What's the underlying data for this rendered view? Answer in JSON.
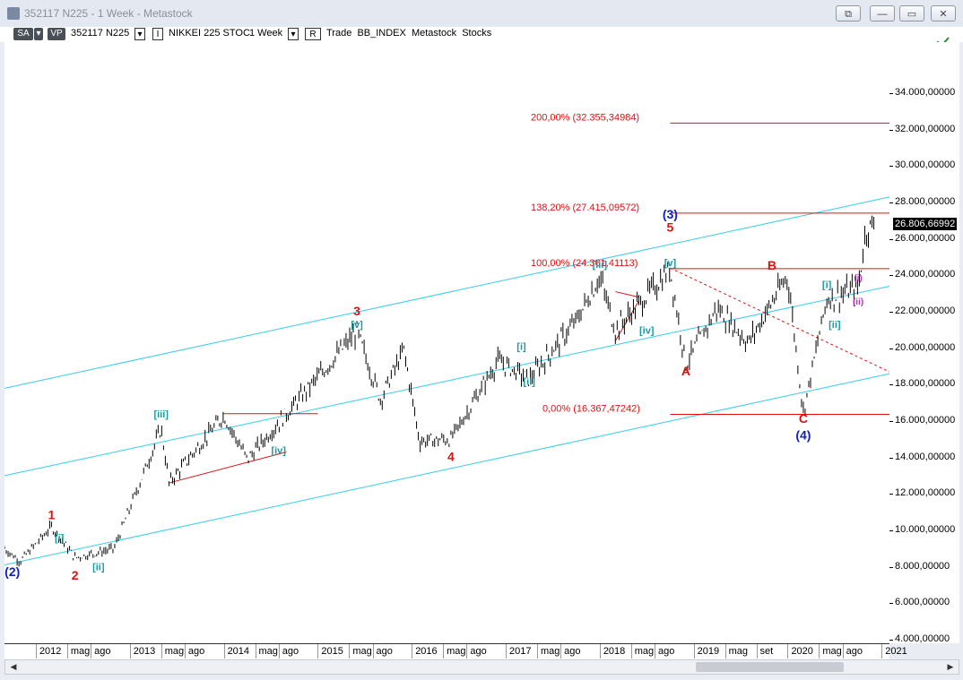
{
  "window": {
    "title": "352117 N225 - 1 Week - Metastock",
    "btn_restore": "⧉",
    "btn_min": "—",
    "btn_max": "▭",
    "btn_close": "✕"
  },
  "toolbar": {
    "sa": "SA",
    "vp": "VP",
    "security": "352117 N225",
    "i_label": "I",
    "name": "NIKKEI 225 STOC",
    "period": "1 Week",
    "r_label": "R",
    "tail": "Trade  BB_INDEX  Metastock  Stocks",
    "dropdown_glyph": "▾"
  },
  "icons": {
    "app": "metastock-app-icon",
    "tool": "drawing-tool-icon",
    "scroll_left": "◀",
    "scroll_right": "▶"
  },
  "colors": {
    "candles": "#000000",
    "channel": "#33ccee",
    "fib": "#e01010",
    "wave_red": "#e01010",
    "wave_blue": "#1020c0",
    "wave_teal": "#1a9aa0",
    "wave_magenta": "#c030c0"
  },
  "chart_data": {
    "type": "candlestick",
    "symbol": "N225",
    "period": "1 Week",
    "y_range": [
      3800,
      36800
    ],
    "y_ticks": [
      "34.000,00000",
      "32.000,00000",
      "30.000,00000",
      "28.000,00000",
      "26.000,00000",
      "24.000,00000",
      "22.000,00000",
      "20.000,00000",
      "18.000,00000",
      "16.000,00000",
      "14.000,00000",
      "12.000,00000",
      "10.000,00000",
      "8.000,00000",
      "6.000,00000",
      "4.000,00000"
    ],
    "y_tick_values": [
      34000,
      32000,
      30000,
      28000,
      26000,
      24000,
      22000,
      20000,
      18000,
      16000,
      14000,
      12000,
      10000,
      8000,
      6000,
      4000
    ],
    "last_price": "26.806,66992",
    "last_value": 26806.67,
    "x_range": [
      "2011-09",
      "2021-02"
    ],
    "x_ticks": [
      {
        "label": "2012",
        "date": "2012-01"
      },
      {
        "label": "mag",
        "date": "2012-05"
      },
      {
        "label": "ago",
        "date": "2012-08"
      },
      {
        "label": "2013",
        "date": "2013-01"
      },
      {
        "label": "mag",
        "date": "2013-05"
      },
      {
        "label": "ago",
        "date": "2013-08"
      },
      {
        "label": "2014",
        "date": "2014-01"
      },
      {
        "label": "mag",
        "date": "2014-05"
      },
      {
        "label": "ago",
        "date": "2014-08"
      },
      {
        "label": "2015",
        "date": "2015-01"
      },
      {
        "label": "mag",
        "date": "2015-05"
      },
      {
        "label": "ago",
        "date": "2015-08"
      },
      {
        "label": "2016",
        "date": "2016-01"
      },
      {
        "label": "mag",
        "date": "2016-05"
      },
      {
        "label": "ago",
        "date": "2016-08"
      },
      {
        "label": "2017",
        "date": "2017-01"
      },
      {
        "label": "mag",
        "date": "2017-05"
      },
      {
        "label": "ago",
        "date": "2017-08"
      },
      {
        "label": "2018",
        "date": "2018-01"
      },
      {
        "label": "mag",
        "date": "2018-05"
      },
      {
        "label": "ago",
        "date": "2018-08"
      },
      {
        "label": "2019",
        "date": "2019-01"
      },
      {
        "label": "mag",
        "date": "2019-05"
      },
      {
        "label": "set",
        "date": "2019-09"
      },
      {
        "label": "2020",
        "date": "2020-01"
      },
      {
        "label": "mag",
        "date": "2020-05"
      },
      {
        "label": "ago",
        "date": "2020-08"
      },
      {
        "label": "2021",
        "date": "2021-01"
      }
    ],
    "price_path": [
      [
        "2011-09",
        9000
      ],
      [
        "2011-11",
        8300
      ],
      [
        "2012-03",
        10200
      ],
      [
        "2012-06",
        8500
      ],
      [
        "2012-11",
        9000
      ],
      [
        "2013-05",
        15600
      ],
      [
        "2013-06",
        12600
      ],
      [
        "2014-01",
        16300
      ],
      [
        "2014-04",
        13900
      ],
      [
        "2014-12",
        17900
      ],
      [
        "2015-06",
        20900
      ],
      [
        "2015-09",
        17200
      ],
      [
        "2015-12",
        19900
      ],
      [
        "2016-02",
        14900
      ],
      [
        "2016-06",
        15000
      ],
      [
        "2016-12",
        19300
      ],
      [
        "2017-04",
        18300
      ],
      [
        "2017-10",
        21500
      ],
      [
        "2018-01",
        23900
      ],
      [
        "2018-03",
        21000
      ],
      [
        "2018-10",
        24300
      ],
      [
        "2018-12",
        19100
      ],
      [
        "2019-04",
        22200
      ],
      [
        "2019-08",
        20300
      ],
      [
        "2020-01",
        24000
      ],
      [
        "2020-03",
        16500
      ],
      [
        "2020-06",
        22700
      ],
      [
        "2020-10",
        23300
      ],
      [
        "2020-11",
        26500
      ],
      [
        "2020-12",
        26806.67
      ]
    ],
    "fib_levels": [
      {
        "label": "200,00% (32.355,34984)",
        "value": 32355.35
      },
      {
        "label": "138,20% (27.415,09572)",
        "value": 27415.1
      },
      {
        "label": "100,00% (24.361,41113)",
        "value": 24361.41
      },
      {
        "label": "0,00% (16.367,47242)",
        "value": 16367.47
      }
    ],
    "waves_red": [
      {
        "label": "1",
        "date": "2012-03",
        "value": 10600
      },
      {
        "label": "2",
        "date": "2012-06",
        "value": 7300
      },
      {
        "label": "3",
        "date": "2015-06",
        "value": 21800
      },
      {
        "label": "4",
        "date": "2016-06",
        "value": 13800
      },
      {
        "label": "5",
        "date": "2018-10",
        "value": 26400
      },
      {
        "label": "A",
        "date": "2018-12",
        "value": 18500
      },
      {
        "label": "B",
        "date": "2019-11",
        "value": 24300
      },
      {
        "label": "C",
        "date": "2020-03",
        "value": 15900
      }
    ],
    "waves_blue": [
      {
        "label": "(2)",
        "date": "2011-10",
        "value": 7500
      },
      {
        "label": "(3)",
        "date": "2018-10",
        "value": 27100
      },
      {
        "label": "(4)",
        "date": "2020-03",
        "value": 15000
      }
    ],
    "waves_teal": [
      {
        "label": "[i]",
        "date": "2012-04",
        "value": 9400
      },
      {
        "label": "[ii]",
        "date": "2012-09",
        "value": 7800
      },
      {
        "label": "[iii]",
        "date": "2013-05",
        "value": 16200
      },
      {
        "label": "[iv]",
        "date": "2014-08",
        "value": 14200
      },
      {
        "label": "[v]",
        "date": "2015-06",
        "value": 21100
      },
      {
        "label": "[i]",
        "date": "2017-03",
        "value": 19900
      },
      {
        "label": "[ii]",
        "date": "2017-04",
        "value": 18000
      },
      {
        "label": "[iii]",
        "date": "2018-01",
        "value": 24400
      },
      {
        "label": "[iv]",
        "date": "2018-07",
        "value": 20800
      },
      {
        "label": "[v]",
        "date": "2018-10",
        "value": 24500
      },
      {
        "label": "[i]",
        "date": "2020-06",
        "value": 23300
      },
      {
        "label": "[ii]",
        "date": "2020-07",
        "value": 21100
      }
    ],
    "waves_magenta": [
      {
        "label": "(i)",
        "date": "2020-10",
        "value": 23700
      },
      {
        "label": "(ii)",
        "date": "2020-10",
        "value": 22400
      }
    ],
    "channels": [
      {
        "from": [
          "2011-09",
          17800
        ],
        "to": [
          "2021-02",
          28300
        ]
      },
      {
        "from": [
          "2011-09",
          13000
        ],
        "to": [
          "2021-02",
          23400
        ]
      },
      {
        "from": [
          "2011-09",
          8100
        ],
        "to": [
          "2021-02",
          18600
        ]
      }
    ],
    "trendlines_red": [
      {
        "from": [
          "2013-06",
          12600
        ],
        "to": [
          "2014-09",
          14300
        ]
      },
      {
        "from": [
          "2014-01",
          16400
        ],
        "to": [
          "2015-01",
          16400
        ]
      },
      {
        "from": [
          "2018-03",
          20400
        ],
        "to": [
          "2018-06",
          22600
        ]
      },
      {
        "from": [
          "2018-03",
          23100
        ],
        "to": [
          "2018-06",
          22800
        ]
      },
      {
        "from": [
          "2018-10",
          24400
        ],
        "to": [
          "2021-02",
          18700
        ],
        "dash": true
      }
    ]
  }
}
